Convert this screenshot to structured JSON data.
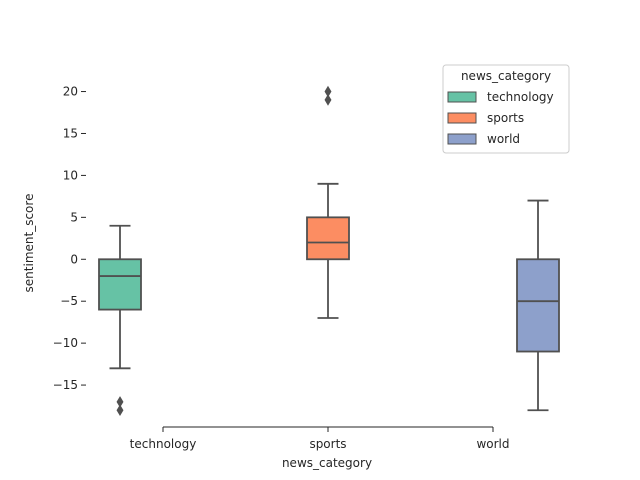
{
  "chart_data": {
    "type": "box",
    "xlabel": "news_category",
    "ylabel": "sentiment_score",
    "categories": [
      "technology",
      "sports",
      "world"
    ],
    "ylim": [
      -20,
      24
    ],
    "yticks": [
      -15,
      -10,
      -5,
      0,
      5,
      10,
      15,
      20
    ],
    "ytick_labels": [
      "−15",
      "−10",
      "−5",
      "0",
      "5",
      "10",
      "15",
      "20"
    ],
    "grid": false,
    "legend": {
      "title": "news_category",
      "placement": "top-right",
      "entries": [
        "technology",
        "sports",
        "world"
      ]
    },
    "series": [
      {
        "name": "technology",
        "color": "#66c2a5",
        "category_index": 0,
        "offset": "left",
        "whisker_low": -13,
        "q1": -6,
        "median": -2,
        "q3": 0,
        "whisker_high": 4,
        "outliers": [
          -17,
          -18
        ]
      },
      {
        "name": "sports",
        "color": "#fc8d62",
        "category_index": 1,
        "offset": "center",
        "whisker_low": -7,
        "q1": 0,
        "median": 2,
        "q3": 5,
        "whisker_high": 9,
        "outliers": [
          19,
          20
        ]
      },
      {
        "name": "world",
        "color": "#8da0cb",
        "category_index": 2,
        "offset": "right",
        "whisker_low": -18,
        "q1": -11,
        "median": -5,
        "q3": 0,
        "whisker_high": 7,
        "outliers": []
      }
    ],
    "line_color": "#505050"
  }
}
